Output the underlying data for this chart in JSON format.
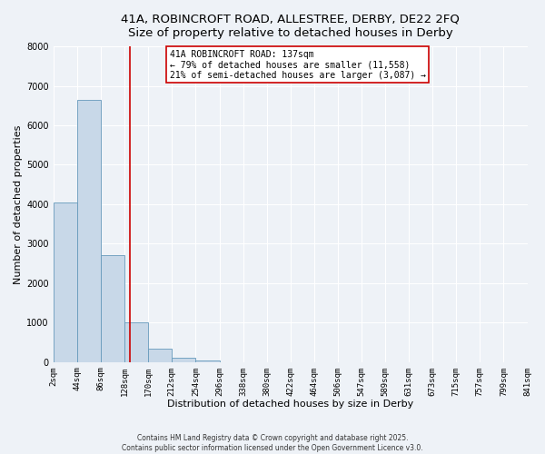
{
  "title_line1": "41A, ROBINCROFT ROAD, ALLESTREE, DERBY, DE22 2FQ",
  "title_line2": "Size of property relative to detached houses in Derby",
  "xlabel": "Distribution of detached houses by size in Derby",
  "ylabel": "Number of detached properties",
  "bar_edges": [
    2,
    44,
    86,
    128,
    170,
    212,
    254,
    296,
    338,
    380,
    422,
    464,
    506,
    547,
    589,
    631,
    673,
    715,
    757,
    799,
    841
  ],
  "bar_heights": [
    4050,
    6650,
    2700,
    1000,
    340,
    110,
    30,
    0,
    0,
    0,
    0,
    0,
    0,
    0,
    0,
    0,
    0,
    0,
    0,
    0
  ],
  "bar_color": "#c8d8e8",
  "bar_edge_color": "#6699bb",
  "property_line_x": 137,
  "property_line_color": "#cc0000",
  "annotation_title": "41A ROBINCROFT ROAD: 137sqm",
  "annotation_line1": "← 79% of detached houses are smaller (11,558)",
  "annotation_line2": "21% of semi-detached houses are larger (3,087) →",
  "annotation_box_color": "#cc0000",
  "ylim": [
    0,
    8000
  ],
  "yticks": [
    0,
    1000,
    2000,
    3000,
    4000,
    5000,
    6000,
    7000,
    8000
  ],
  "tick_labels": [
    "2sqm",
    "44sqm",
    "86sqm",
    "128sqm",
    "170sqm",
    "212sqm",
    "254sqm",
    "296sqm",
    "338sqm",
    "380sqm",
    "422sqm",
    "464sqm",
    "506sqm",
    "547sqm",
    "589sqm",
    "631sqm",
    "673sqm",
    "715sqm",
    "757sqm",
    "799sqm",
    "841sqm"
  ],
  "footnote1": "Contains HM Land Registry data © Crown copyright and database right 2025.",
  "footnote2": "Contains public sector information licensed under the Open Government Licence v3.0.",
  "background_color": "#eef2f7",
  "grid_color": "#ffffff",
  "title_fontsize": 9.5,
  "axis_label_fontsize": 8,
  "tick_fontsize": 6.5,
  "annot_fontsize": 7
}
